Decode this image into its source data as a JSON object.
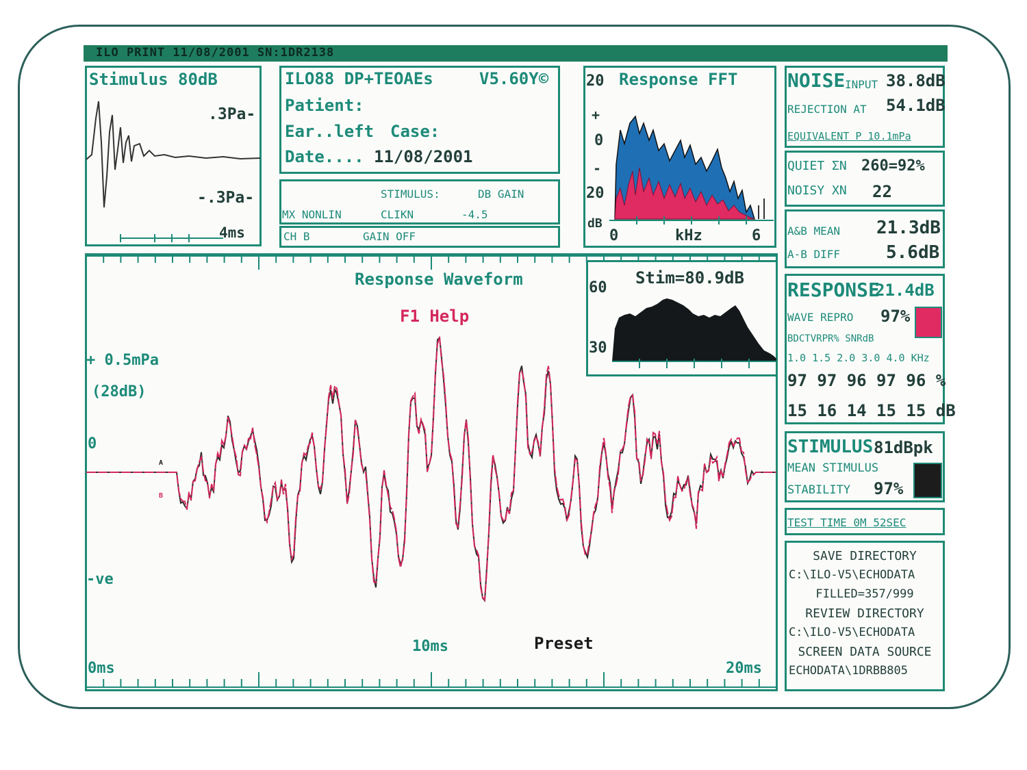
{
  "title_bar": "ILO PRINT 11/08/2001 SN:1DR2138",
  "stimulus_panel": {
    "title": "Stimulus 80dB",
    "pos_label": ".3Pa-",
    "neg_label": "-.3Pa-",
    "time_label": "4ms"
  },
  "info_panel": {
    "program": "ILO88 DP+TEOAEs",
    "version": "V5.60Y©",
    "patient_label": "Patient:",
    "ear_label": "Ear..left",
    "case_label": "Case:",
    "date_label": "Date....",
    "date_value": "11/08/2001"
  },
  "mode_panel": {
    "stimulus_label": "STIMULUS:",
    "db_gain_label": "DB GAIN",
    "mx_label": "MX NONLIN",
    "click_label": "CLIKN",
    "gain_value": "-4.5",
    "ch_label": "CH B",
    "gain_off_label": "GAIN OFF"
  },
  "fft_panel": {
    "title": "Response FFT",
    "y_top": "20",
    "y_plus": "+",
    "y_zero": "0",
    "y_minus": "-",
    "y_bottom": "20",
    "db_unit": "dB",
    "x_start": "0",
    "x_unit": "kHz",
    "x_end": "6"
  },
  "waveform_panel": {
    "title": "Response Waveform",
    "help": "F1 Help",
    "amp_label": "+ 0.5mPa",
    "amp_db": "(28dB)",
    "zero_label": "0",
    "neg_label": "-ve",
    "t_start": "0ms",
    "t_mid": "10ms",
    "t_end": "20ms",
    "preset": "Preset",
    "marker_a": "A",
    "marker_b": "B"
  },
  "stim_spectrum": {
    "title": "Stim=80.9dB",
    "y_top": "60",
    "y_bottom": "30"
  },
  "noise_panel": {
    "noise": "NOISE",
    "input": "INPUT",
    "input_value": "38.8dB",
    "rejection": "REJECTION AT",
    "rejection_value": "54.1dB",
    "equivalent": "EQUIVALENT P 10.1mPa"
  },
  "quiet_panel": {
    "quiet_label": "QUIET ΣN",
    "quiet_value": "260=92%",
    "noisy_label": "NOISY XN",
    "noisy_value": "22"
  },
  "mean_panel": {
    "mean_label": "A&B MEAN",
    "mean_value": "21.3dB",
    "diff_label": "A-B DIFF",
    "diff_value": "5.6dB"
  },
  "response_panel": {
    "response": "RESPONSE",
    "response_value": "21.4dB",
    "wave_repro": "WAVE REPRO",
    "wave_repro_value": "97%",
    "band_header": "BDCTVRPR% SNRdB",
    "freqs": "1.0 1.5 2.0 3.0 4.0 KHz",
    "repro_row": "97 97 96 97 96 %",
    "snr_row": "15 16 14 15 15 dB",
    "indicator_color": "#e02a62"
  },
  "stimulus_panel2": {
    "stimulus": "STIMULUS",
    "stimulus_value": "81dBpk",
    "mean_stimulus": "MEAN STIMULUS",
    "stability": "STABILITY",
    "stability_value": "97%",
    "indicator_color": "#1c1c1c"
  },
  "test_time": "TEST TIME  0M 52SEC",
  "directory_panel": {
    "save_title": "SAVE DIRECTORY",
    "save_path": "C:\\ILO-V5\\ECHODATA",
    "filled": "FILLED=357/999",
    "review_title": "REVIEW DIRECTORY",
    "review_path": "C:\\ILO-V5\\ECHODATA",
    "source_title": "SCREEN DATA SOURCE",
    "source_path": "ECHODATA\\1DRBB805"
  }
}
